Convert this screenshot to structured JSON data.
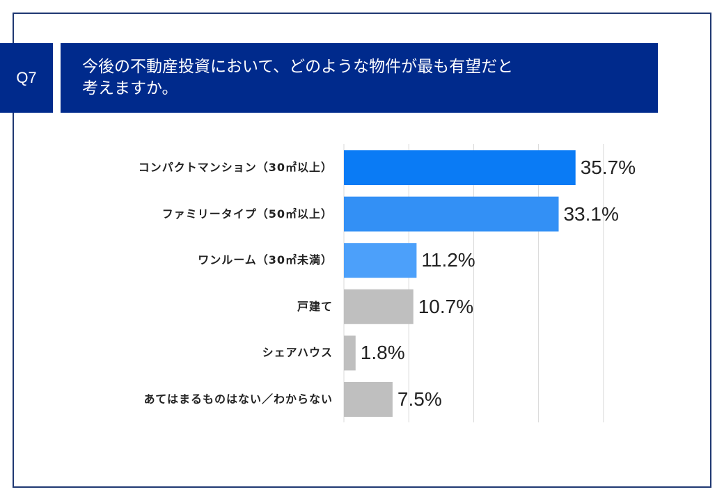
{
  "question": {
    "number": "Q7",
    "title_line1": "今後の不動産投資において、どのような物件が最も有望だと",
    "title_line2": "考えますか。"
  },
  "colors": {
    "header_bg": "#002a8c",
    "frame": "#1f3872",
    "gridline": "#d9d9d9"
  },
  "chart_data": {
    "type": "bar",
    "orientation": "horizontal",
    "title": "今後の不動産投資において、どのような物件が最も有望だと考えますか。",
    "categories": [
      "コンパクトマンション（30㎡以上）",
      "ファミリータイプ（50㎡以上）",
      "ワンルーム（30㎡未満）",
      "戸建て",
      "シェアハウス",
      "あてはまるものはない／わからない"
    ],
    "values": [
      35.7,
      33.1,
      11.2,
      10.7,
      1.8,
      7.5
    ],
    "value_labels": [
      "35.7%",
      "33.1%",
      "11.2%",
      "10.7%",
      "1.8%",
      "7.5%"
    ],
    "bar_colors": [
      "#0a7bf5",
      "#3390f5",
      "#4ca0fa",
      "#bfbfbf",
      "#bfbfbf",
      "#bfbfbf"
    ],
    "xlim": [
      0,
      40
    ],
    "grid_step": 10,
    "unit": "%",
    "grid": true
  }
}
